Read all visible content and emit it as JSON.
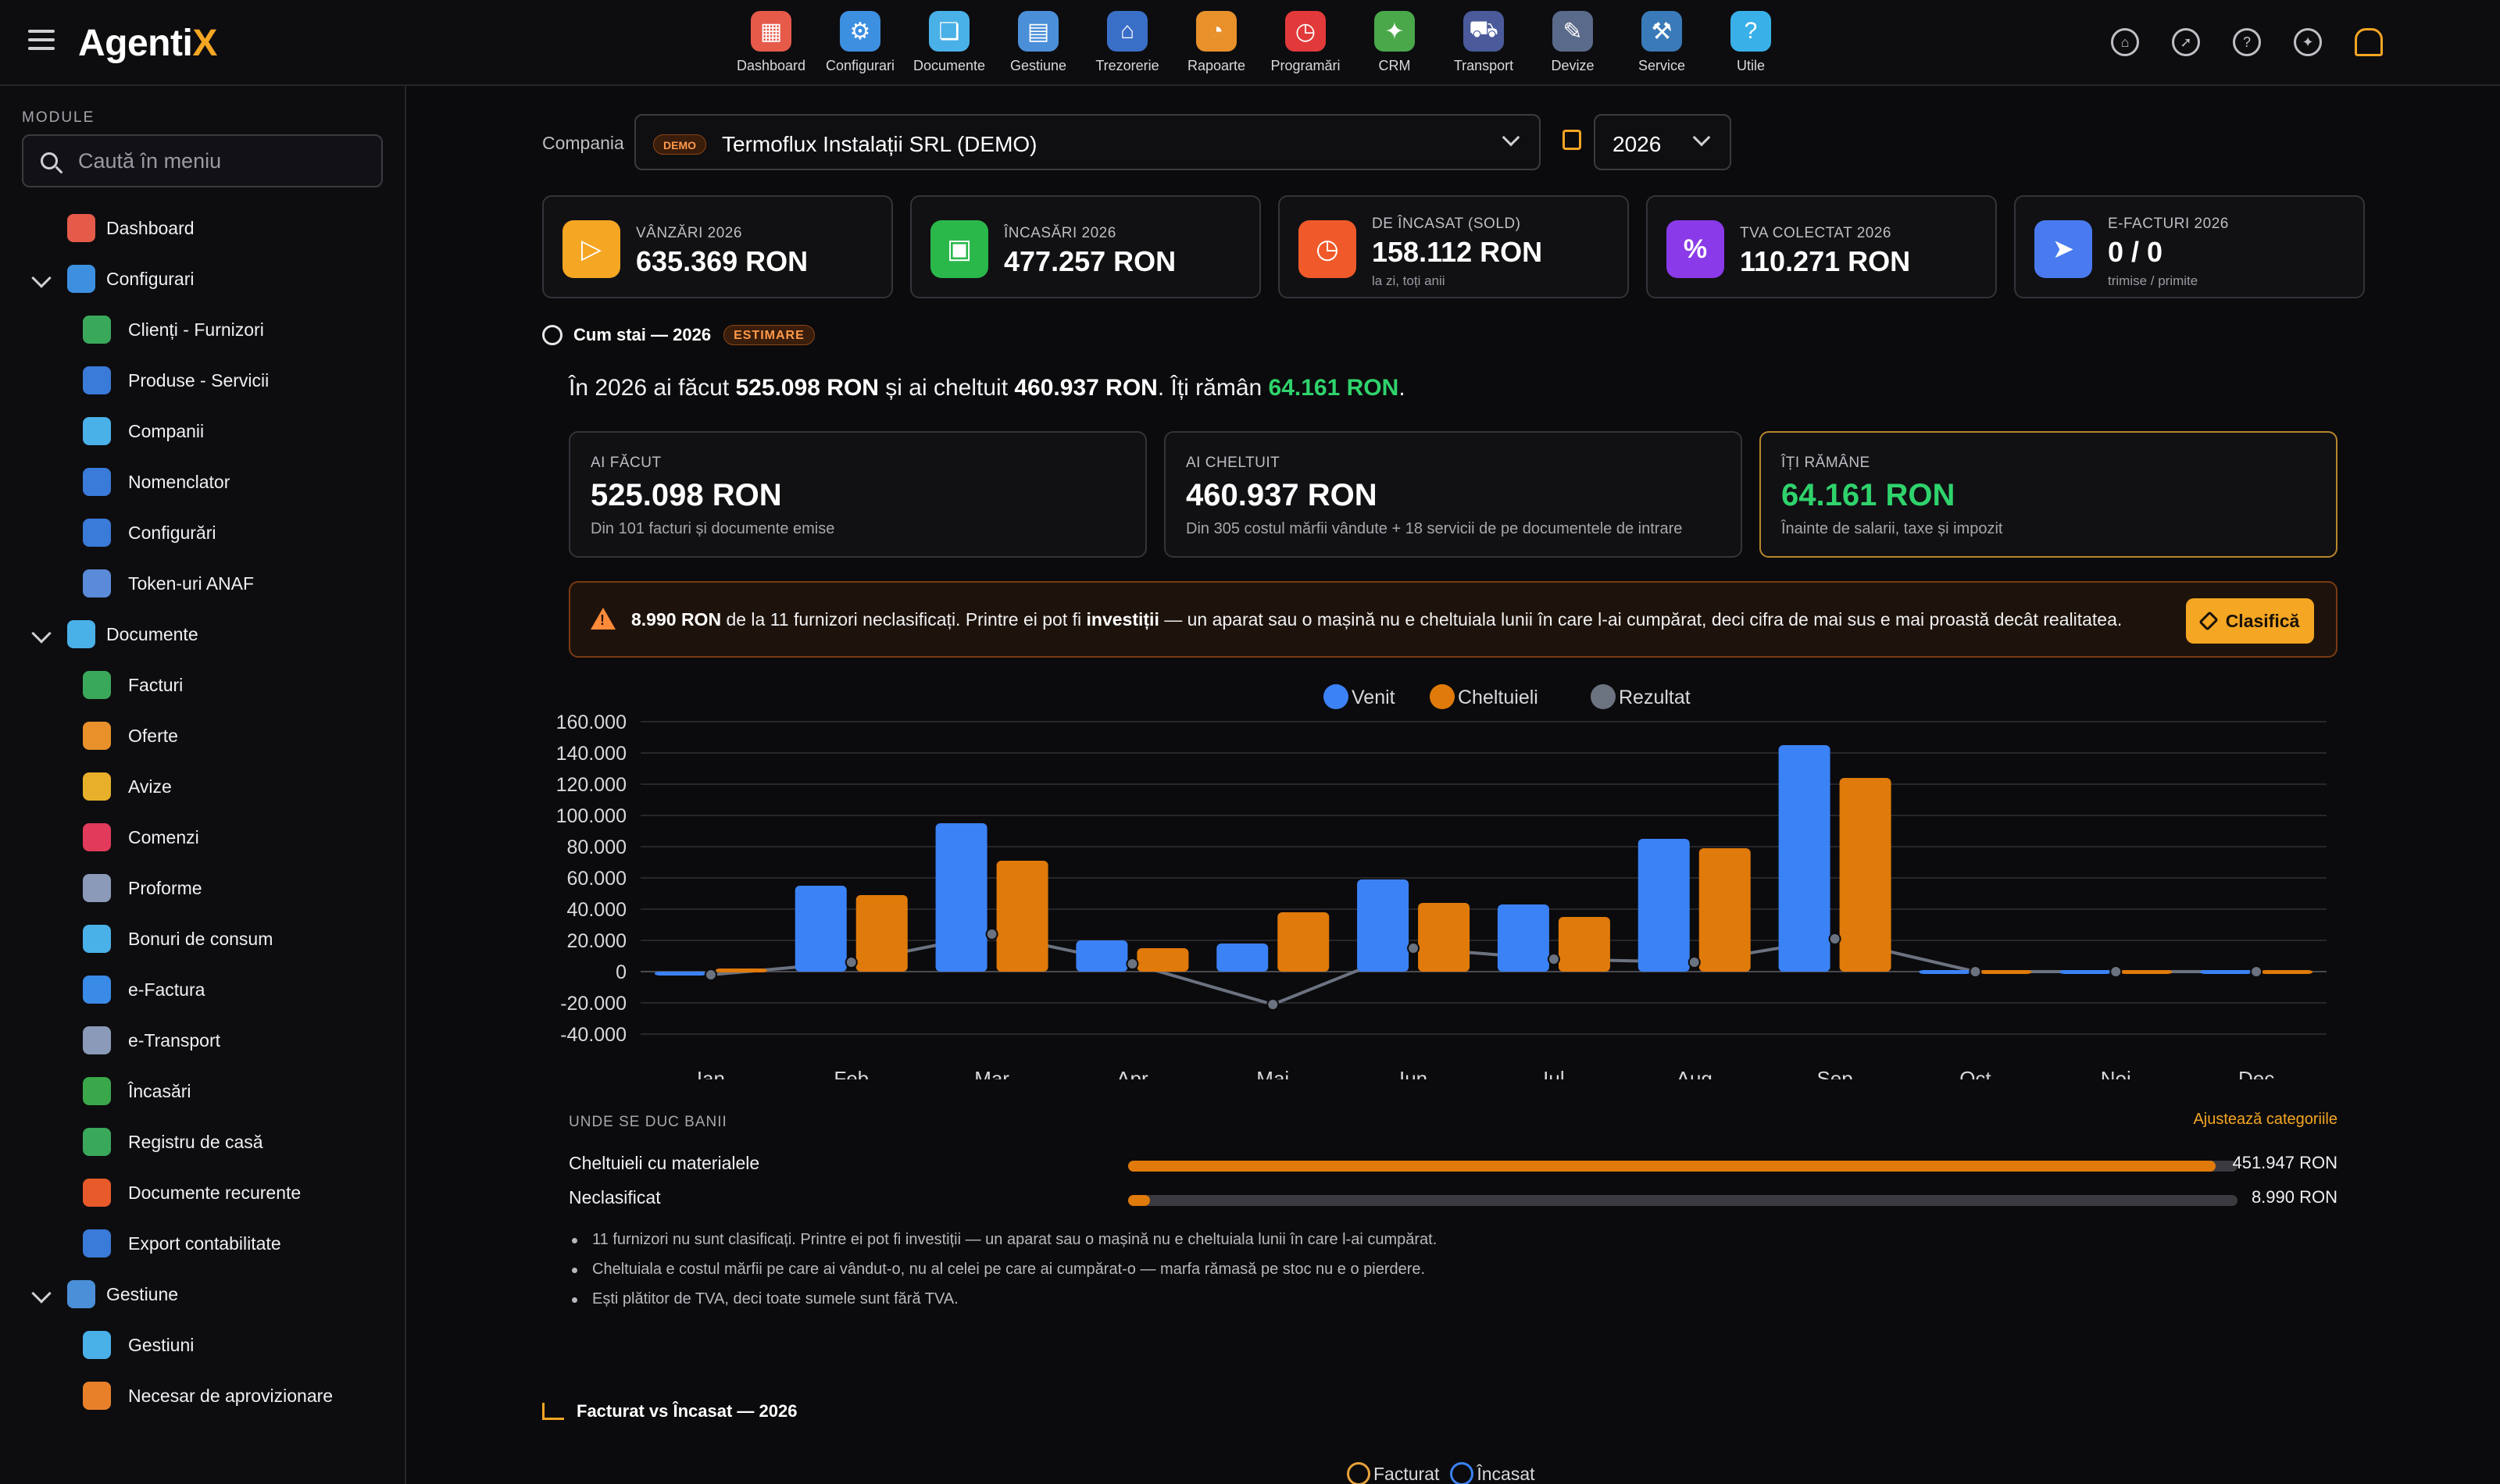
{
  "app": {
    "logo_main": "Agenti",
    "logo_accent": "X"
  },
  "topnav": [
    {
      "label": "Dashboard",
      "icon": "dashboard-icon",
      "color": "#e65a4a",
      "glyph": "▦"
    },
    {
      "label": "Configurari",
      "icon": "gear-search-icon",
      "color": "#3d8fe0",
      "glyph": "⚙"
    },
    {
      "label": "Documente",
      "icon": "folder-icon",
      "color": "#4ab0e8",
      "glyph": "❏"
    },
    {
      "label": "Gestiune",
      "icon": "boxes-icon",
      "color": "#4a8fd8",
      "glyph": "▤"
    },
    {
      "label": "Trezorerie",
      "icon": "bank-icon",
      "color": "#3a6fc8",
      "glyph": "⌂"
    },
    {
      "label": "Rapoarte",
      "icon": "report-chart-icon",
      "color": "#e8902a",
      "glyph": "◔"
    },
    {
      "label": "Programări",
      "icon": "clock-icon",
      "color": "#e23a3a",
      "glyph": "◷"
    },
    {
      "label": "CRM",
      "icon": "crm-people-icon",
      "color": "#4aa84a",
      "glyph": "✦"
    },
    {
      "label": "Transport",
      "icon": "truck-icon",
      "color": "#4a5a9a",
      "glyph": "⛟"
    },
    {
      "label": "Devize",
      "icon": "clipboard-icon",
      "color": "#5a6a8a",
      "glyph": "✎"
    },
    {
      "label": "Service",
      "icon": "service-car-icon",
      "color": "#3a7ab8",
      "glyph": "⚒"
    },
    {
      "label": "Utile",
      "icon": "help-icon",
      "color": "#3ab0e8",
      "glyph": "?"
    }
  ],
  "topright": [
    {
      "icon": "home-icon",
      "glyph": "⌂"
    },
    {
      "icon": "compass-icon",
      "glyph": "➚"
    },
    {
      "icon": "help-circle-icon",
      "glyph": "?"
    },
    {
      "icon": "sparkle-icon",
      "glyph": "✦"
    },
    {
      "icon": "bell-icon",
      "glyph": ""
    }
  ],
  "sidebar": {
    "title": "MODULE",
    "search_placeholder": "Caută în meniu",
    "items": [
      {
        "label": "Dashboard",
        "level": "top",
        "chev": false,
        "color": "#e65a4a"
      },
      {
        "label": "Configurari",
        "level": "top",
        "chev": true,
        "color": "#3d8fe0"
      },
      {
        "label": "Clienți - Furnizori",
        "level": "sub",
        "chev": false,
        "color": "#3aa85a"
      },
      {
        "label": "Produse - Servicii",
        "level": "sub",
        "chev": false,
        "color": "#3a7ad8"
      },
      {
        "label": "Companii",
        "level": "sub",
        "chev": false,
        "color": "#4ab0e8"
      },
      {
        "label": "Nomenclator",
        "level": "sub",
        "chev": false,
        "color": "#3a7ad8"
      },
      {
        "label": "Configurări",
        "level": "sub",
        "chev": false,
        "color": "#3a7ad8"
      },
      {
        "label": "Token-uri ANAF",
        "level": "sub",
        "chev": false,
        "color": "#5a8ad8"
      },
      {
        "label": "Documente",
        "level": "top",
        "chev": true,
        "color": "#4ab0e8"
      },
      {
        "label": "Facturi",
        "level": "sub",
        "chev": false,
        "color": "#3aa85a"
      },
      {
        "label": "Oferte",
        "level": "sub",
        "chev": false,
        "color": "#e8902a"
      },
      {
        "label": "Avize",
        "level": "sub",
        "chev": false,
        "color": "#e8b02a"
      },
      {
        "label": "Comenzi",
        "level": "sub",
        "chev": false,
        "color": "#e23a5a"
      },
      {
        "label": "Proforme",
        "level": "sub",
        "chev": false,
        "color": "#8a9ab8"
      },
      {
        "label": "Bonuri de consum",
        "level": "sub",
        "chev": false,
        "color": "#4ab0e8"
      },
      {
        "label": "e-Factura",
        "level": "sub",
        "chev": false,
        "color": "#3a8ae8"
      },
      {
        "label": "e-Transport",
        "level": "sub",
        "chev": false,
        "color": "#8a9ab8"
      },
      {
        "label": "Încasări",
        "level": "sub",
        "chev": false,
        "color": "#3aa84a"
      },
      {
        "label": "Registru de casă",
        "level": "sub",
        "chev": false,
        "color": "#3aa85a"
      },
      {
        "label": "Documente recurente",
        "level": "sub",
        "chev": false,
        "color": "#e85a2a"
      },
      {
        "label": "Export contabilitate",
        "level": "sub",
        "chev": false,
        "color": "#3a7ad8"
      },
      {
        "label": "Gestiune",
        "level": "top",
        "chev": true,
        "color": "#4a8fd8"
      },
      {
        "label": "Gestiuni",
        "level": "sub",
        "chev": false,
        "color": "#4ab0e8"
      },
      {
        "label": "Necesar de aprovizionare",
        "level": "sub",
        "chev": false,
        "color": "#e8802a"
      }
    ]
  },
  "company": {
    "label": "Compania",
    "demo_badge": "DEMO",
    "name": "Termoflux Instalații SRL (DEMO)",
    "year": "2026"
  },
  "kpis": [
    {
      "label": "VÂNZĂRI 2026",
      "value": "635.369 RON",
      "sub": "",
      "color": "#f5a623",
      "icon": "sales-icon",
      "glyph": "▷"
    },
    {
      "label": "ÎNCASĂRI 2026",
      "value": "477.257 RON",
      "sub": "",
      "color": "#2ab84a",
      "icon": "wallet-icon",
      "glyph": "▣"
    },
    {
      "label": "DE ÎNCASAT (SOLD)",
      "value": "158.112 RON",
      "sub": "la zi, toți anii",
      "color": "#f05a2a",
      "icon": "clock-icon",
      "glyph": "◷"
    },
    {
      "label": "TVA COLECTAT 2026",
      "value": "110.271 RON",
      "sub": "",
      "color": "#8a3ae8",
      "icon": "percent-icon",
      "glyph": "%"
    },
    {
      "label": "E-FACTURI 2026",
      "value": "0 / 0",
      "sub": "trimise / primite",
      "color": "#4a7af0",
      "icon": "send-icon",
      "glyph": "➤"
    }
  ],
  "cum_stai": {
    "title": "Cum stai — 2026",
    "badge": "ESTIMARE",
    "summary": {
      "p1": "În 2026 ai făcut ",
      "made": "525.098 RON",
      "p2": " și ai cheltuit ",
      "spent": "460.937 RON",
      "p3": ". Îți rămân ",
      "left": "64.161 RON",
      "p4": "."
    },
    "boxes": [
      {
        "label": "AI FĂCUT",
        "value": "525.098 RON",
        "sub": "Din 101 facturi și documente emise",
        "green": false
      },
      {
        "label": "AI CHELTUIT",
        "value": "460.937 RON",
        "sub": "Din 305 costul mărfii vândute + 18 servicii de pe documentele de intrare",
        "green": false
      },
      {
        "label": "ÎȚI RĂMÂNE",
        "value": "64.161 RON",
        "sub": "Înainte de salarii, taxe și impozit",
        "green": true
      }
    ],
    "warning": {
      "amount": "8.990 RON",
      "t1": " de la 11 furnizori neclasificați. Printre ei pot fi ",
      "bold": "investiții",
      "t2": " — un aparat sau o mașină nu e cheltuiala lunii în care l-ai cumpărat, deci cifra de mai sus e mai proastă decât realitatea.",
      "button": "Clasifică"
    }
  },
  "chart_data": {
    "type": "bar",
    "categories": [
      "Ian",
      "Feb",
      "Mar",
      "Apr",
      "Mai",
      "Iun",
      "Iul",
      "Aug",
      "Sep",
      "Oct",
      "Noi",
      "Dec"
    ],
    "series": [
      {
        "name": "Venit",
        "type": "bar",
        "color": "#3b82f6",
        "values": [
          -1000,
          55000,
          95000,
          20000,
          18000,
          59000,
          43000,
          85000,
          145000,
          1000,
          1000,
          1000
        ]
      },
      {
        "name": "Cheltuieli",
        "type": "bar",
        "color": "#e07a0a",
        "values": [
          2000,
          49000,
          71000,
          15000,
          38000,
          44000,
          35000,
          79000,
          124000,
          1000,
          1000,
          1000
        ]
      },
      {
        "name": "Rezultat",
        "type": "line",
        "color": "#6b7280",
        "values": [
          -2000,
          6000,
          24000,
          5000,
          -21000,
          15000,
          8000,
          6000,
          21000,
          0,
          0,
          0
        ]
      }
    ],
    "yticks": [
      "160.000",
      "140.000",
      "120.000",
      "100.000",
      "80.000",
      "60.000",
      "40.000",
      "20.000",
      "0",
      "-20.000",
      "-40.000"
    ],
    "ylim": [
      -40000,
      160000
    ],
    "grid": true,
    "legend": "top-center"
  },
  "where": {
    "title": "UNDE SE DUC BANII",
    "adjust": "Ajustează categoriile",
    "rows": [
      {
        "label": "Cheltuieli cu materialele",
        "value": "451.947 RON",
        "fraction": 0.98
      },
      {
        "label": "Neclasificat",
        "value": "8.990 RON",
        "fraction": 0.02
      }
    ]
  },
  "notes": [
    "11 furnizori nu sunt clasificați. Printre ei pot fi investiții — un aparat sau o mașină nu e cheltuiala lunii în care l-ai cumpărat.",
    "Cheltuiala e costul mărfii pe care ai vândut-o, nu al celei pe care ai cumpărat-o — marfa rămasă pe stoc nu e o pierdere.",
    "Ești plătitor de TVA, deci toate sumele sunt fără TVA."
  ],
  "section2": {
    "title": "Facturat vs Încasat — 2026",
    "legend": [
      {
        "name": "Facturat",
        "color": "#e8a23a"
      },
      {
        "name": "Încasat",
        "color": "#3b82f6"
      }
    ]
  }
}
